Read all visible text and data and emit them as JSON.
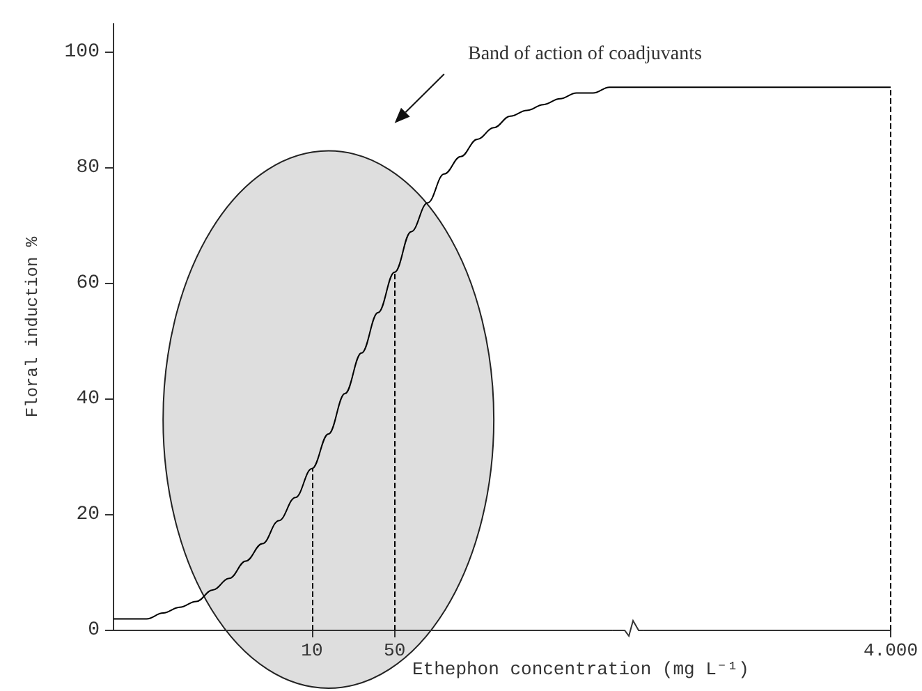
{
  "chart_data": {
    "type": "line",
    "xlabel": "Ethephon concentration (mg L⁻¹)",
    "ylabel": "Floral induction %",
    "annotations": [
      "Band of action of coadjuvants"
    ],
    "categories": [
      null,
      null,
      null,
      null,
      null,
      null,
      null,
      null,
      null,
      null,
      null,
      null,
      "10",
      null,
      null,
      null,
      null,
      "50",
      null,
      null,
      null,
      null,
      null,
      null,
      null,
      null,
      null,
      null,
      null,
      null,
      null,
      null,
      null,
      null,
      null,
      null,
      null,
      null,
      null,
      null,
      null,
      null,
      null,
      null,
      null,
      null,
      null,
      "4.000"
    ],
    "series": [
      {
        "color": "#000000",
        "values": [
          2,
          2,
          2,
          3,
          4,
          5,
          7,
          9,
          12,
          15,
          19,
          23,
          28,
          34,
          41,
          48,
          55,
          62,
          69,
          74,
          79,
          82,
          85,
          87,
          89,
          90,
          91,
          92,
          93,
          93,
          94,
          94,
          94,
          94,
          94,
          94,
          94,
          94,
          94,
          94,
          94,
          94,
          94,
          94,
          94,
          94,
          94,
          94
        ]
      }
    ],
    "ylim": [
      0,
      105
    ],
    "yticks": [
      0,
      20,
      40,
      60,
      80,
      100
    ],
    "ref_lines": [
      {
        "axis": "x",
        "value": "10",
        "line_style": "dashed"
      },
      {
        "axis": "x",
        "value": "50",
        "line_style": "dashed"
      },
      {
        "axis": "x",
        "value": "4.000",
        "line_style": "dashed"
      }
    ],
    "grid": false,
    "marker": "none",
    "line_style": "solid"
  }
}
